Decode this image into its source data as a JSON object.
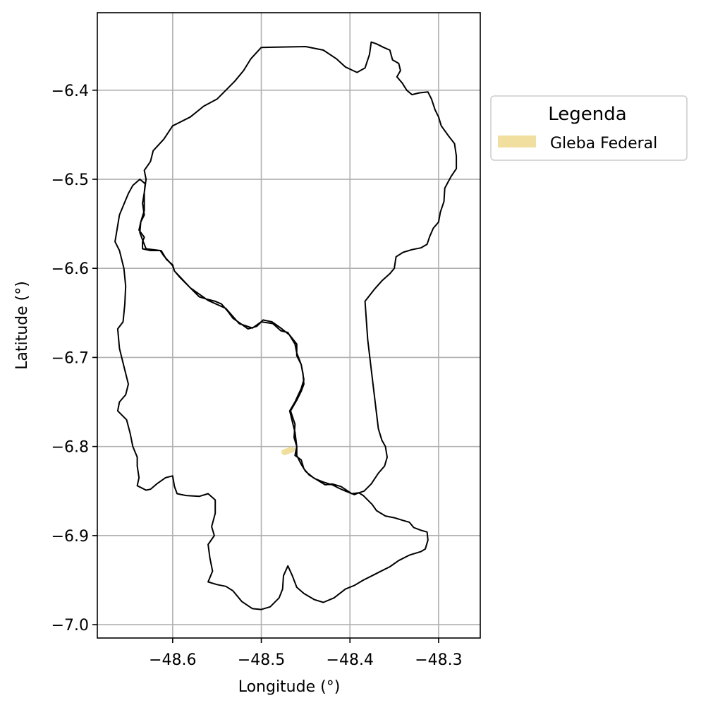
{
  "chart_data": {
    "type": "map",
    "xlabel": "Longitude (°)",
    "ylabel": "Latitude (°)",
    "xlim": [
      -48.685,
      -48.253
    ],
    "ylim": [
      -7.015,
      -6.313
    ],
    "xticks": [
      -48.6,
      -48.5,
      -48.4,
      -48.3
    ],
    "yticks": [
      -6.4,
      -6.5,
      -6.6,
      -6.7,
      -6.8,
      -6.9,
      -7.0
    ],
    "xtick_labels": [
      "−48.6",
      "−48.5",
      "−48.4",
      "−48.3"
    ],
    "ytick_labels": [
      "−6.4",
      "−6.5",
      "−6.6",
      "−6.7",
      "−6.8",
      "−6.9",
      "−7.0"
    ],
    "grid": true,
    "legend": {
      "title": "Legenda",
      "placement": "outside-right-top",
      "entries": [
        {
          "label": "Gleba Federal",
          "color": "#f0df9e"
        }
      ]
    },
    "boundary_color": "#000000",
    "boundary": [
      [
        -48.5,
        -6.352
      ],
      [
        -48.45,
        -6.351
      ],
      [
        -48.43,
        -6.355
      ],
      [
        -48.415,
        -6.365
      ],
      [
        -48.405,
        -6.374
      ],
      [
        -48.392,
        -6.38
      ],
      [
        -48.383,
        -6.375
      ],
      [
        -48.378,
        -6.36
      ],
      [
        -48.376,
        -6.346
      ],
      [
        -48.37,
        -6.348
      ],
      [
        -48.362,
        -6.352
      ],
      [
        -48.355,
        -6.355
      ],
      [
        -48.352,
        -6.366
      ],
      [
        -48.345,
        -6.37
      ],
      [
        -48.343,
        -6.378
      ],
      [
        -48.347,
        -6.385
      ],
      [
        -48.341,
        -6.392
      ],
      [
        -48.336,
        -6.4
      ],
      [
        -48.33,
        -6.405
      ],
      [
        -48.322,
        -6.403
      ],
      [
        -48.312,
        -6.402
      ],
      [
        -48.308,
        -6.41
      ],
      [
        -48.304,
        -6.422
      ],
      [
        -48.3,
        -6.43
      ],
      [
        -48.297,
        -6.44
      ],
      [
        -48.289,
        -6.451
      ],
      [
        -48.282,
        -6.46
      ],
      [
        -48.28,
        -6.474
      ],
      [
        -48.28,
        -6.488
      ],
      [
        -48.286,
        -6.497
      ],
      [
        -48.293,
        -6.51
      ],
      [
        -48.294,
        -6.525
      ],
      [
        -48.298,
        -6.537
      ],
      [
        -48.3,
        -6.548
      ],
      [
        -48.306,
        -6.555
      ],
      [
        -48.31,
        -6.564
      ],
      [
        -48.313,
        -6.573
      ],
      [
        -48.32,
        -6.577
      ],
      [
        -48.33,
        -6.579
      ],
      [
        -48.34,
        -6.582
      ],
      [
        -48.348,
        -6.587
      ],
      [
        -48.35,
        -6.6
      ],
      [
        -48.355,
        -6.606
      ],
      [
        -48.364,
        -6.614
      ],
      [
        -48.372,
        -6.623
      ],
      [
        -48.383,
        -6.637
      ],
      [
        -48.38,
        -6.68
      ],
      [
        -48.374,
        -6.73
      ],
      [
        -48.368,
        -6.78
      ],
      [
        -48.364,
        -6.793
      ],
      [
        -48.36,
        -6.8
      ],
      [
        -48.358,
        -6.812
      ],
      [
        -48.361,
        -6.822
      ],
      [
        -48.368,
        -6.83
      ],
      [
        -48.376,
        -6.842
      ],
      [
        -48.384,
        -6.85
      ],
      [
        -48.39,
        -6.852
      ],
      [
        -48.398,
        -6.853
      ],
      [
        -48.41,
        -6.845
      ],
      [
        -48.42,
        -6.842
      ],
      [
        -48.428,
        -6.843
      ],
      [
        -48.438,
        -6.837
      ],
      [
        -48.446,
        -6.832
      ],
      [
        -48.452,
        -6.825
      ],
      [
        -48.455,
        -6.815
      ],
      [
        -48.462,
        -6.81
      ],
      [
        -48.46,
        -6.8
      ],
      [
        -48.463,
        -6.79
      ],
      [
        -48.462,
        -6.775
      ],
      [
        -48.467,
        -6.76
      ],
      [
        -48.46,
        -6.748
      ],
      [
        -48.455,
        -6.738
      ],
      [
        -48.452,
        -6.73
      ],
      [
        -48.453,
        -6.718
      ],
      [
        -48.455,
        -6.708
      ],
      [
        -48.46,
        -6.698
      ],
      [
        -48.46,
        -6.685
      ],
      [
        -48.468,
        -6.675
      ],
      [
        -48.478,
        -6.667
      ],
      [
        -48.488,
        -6.66
      ],
      [
        -48.498,
        -6.658
      ],
      [
        -48.505,
        -6.665
      ],
      [
        -48.515,
        -6.668
      ],
      [
        -48.522,
        -6.663
      ],
      [
        -48.532,
        -6.656
      ],
      [
        -48.538,
        -6.648
      ],
      [
        -48.545,
        -6.64
      ],
      [
        -48.552,
        -6.637
      ],
      [
        -48.56,
        -6.635
      ],
      [
        -48.57,
        -6.632
      ],
      [
        -48.577,
        -6.625
      ],
      [
        -48.585,
        -6.617
      ],
      [
        -48.592,
        -6.61
      ],
      [
        -48.598,
        -6.603
      ],
      [
        -48.6,
        -6.596
      ],
      [
        -48.607,
        -6.59
      ],
      [
        -48.61,
        -6.585
      ],
      [
        -48.613,
        -6.58
      ],
      [
        -48.625,
        -6.58
      ],
      [
        -48.634,
        -6.578
      ],
      [
        -48.634,
        -6.57
      ],
      [
        -48.632,
        -6.565
      ],
      [
        -48.638,
        -6.557
      ],
      [
        -48.636,
        -6.548
      ],
      [
        -48.632,
        -6.54
      ],
      [
        -48.634,
        -6.527
      ],
      [
        -48.632,
        -6.515
      ],
      [
        -48.631,
        -6.505
      ],
      [
        -48.637,
        -6.5
      ],
      [
        -48.645,
        -6.507
      ],
      [
        -48.65,
        -6.516
      ],
      [
        -48.655,
        -6.528
      ],
      [
        -48.66,
        -6.54
      ],
      [
        -48.665,
        -6.57
      ],
      [
        -48.66,
        -6.58
      ],
      [
        -48.655,
        -6.6
      ],
      [
        -48.653,
        -6.62
      ],
      [
        -48.654,
        -6.64
      ],
      [
        -48.656,
        -6.66
      ],
      [
        -48.662,
        -6.668
      ],
      [
        -48.66,
        -6.69
      ],
      [
        -48.655,
        -6.71
      ],
      [
        -48.65,
        -6.73
      ],
      [
        -48.653,
        -6.742
      ],
      [
        -48.66,
        -6.75
      ],
      [
        -48.662,
        -6.76
      ],
      [
        -48.652,
        -6.77
      ],
      [
        -48.648,
        -6.785
      ],
      [
        -48.645,
        -6.8
      ],
      [
        -48.64,
        -6.812
      ],
      [
        -48.64,
        -6.822
      ],
      [
        -48.638,
        -6.835
      ],
      [
        -48.64,
        -6.844
      ],
      [
        -48.63,
        -6.849
      ],
      [
        -48.625,
        -6.848
      ],
      [
        -48.618,
        -6.842
      ],
      [
        -48.608,
        -6.835
      ],
      [
        -48.6,
        -6.833
      ],
      [
        -48.598,
        -6.845
      ],
      [
        -48.595,
        -6.853
      ],
      [
        -48.585,
        -6.855
      ],
      [
        -48.57,
        -6.856
      ],
      [
        -48.56,
        -6.853
      ],
      [
        -48.552,
        -6.86
      ],
      [
        -48.552,
        -6.875
      ],
      [
        -48.556,
        -6.89
      ],
      [
        -48.553,
        -6.9
      ],
      [
        -48.56,
        -6.91
      ],
      [
        -48.558,
        -6.925
      ],
      [
        -48.555,
        -6.94
      ],
      [
        -48.56,
        -6.952
      ],
      [
        -48.55,
        -6.955
      ],
      [
        -48.54,
        -6.957
      ],
      [
        -48.532,
        -6.962
      ],
      [
        -48.522,
        -6.974
      ],
      [
        -48.51,
        -6.982
      ],
      [
        -48.5,
        -6.983
      ],
      [
        -48.49,
        -6.98
      ],
      [
        -48.48,
        -6.97
      ],
      [
        -48.476,
        -6.96
      ],
      [
        -48.475,
        -6.945
      ],
      [
        -48.47,
        -6.934
      ],
      [
        -48.465,
        -6.945
      ],
      [
        -48.46,
        -6.958
      ],
      [
        -48.452,
        -6.965
      ],
      [
        -48.44,
        -6.972
      ],
      [
        -48.43,
        -6.975
      ],
      [
        -48.418,
        -6.97
      ],
      [
        -48.405,
        -6.96
      ],
      [
        -48.395,
        -6.956
      ],
      [
        -48.385,
        -6.95
      ],
      [
        -48.375,
        -6.945
      ],
      [
        -48.365,
        -6.94
      ],
      [
        -48.355,
        -6.935
      ],
      [
        -48.345,
        -6.928
      ],
      [
        -48.333,
        -6.922
      ],
      [
        -48.32,
        -6.918
      ],
      [
        -48.315,
        -6.915
      ],
      [
        -48.312,
        -6.905
      ],
      [
        -48.313,
        -6.896
      ],
      [
        -48.32,
        -6.894
      ],
      [
        -48.328,
        -6.891
      ],
      [
        -48.333,
        -6.885
      ],
      [
        -48.34,
        -6.883
      ],
      [
        -48.35,
        -6.88
      ],
      [
        -48.36,
        -6.878
      ],
      [
        -48.37,
        -6.872
      ],
      [
        -48.375,
        -6.865
      ],
      [
        -48.38,
        -6.86
      ],
      [
        -48.385,
        -6.855
      ],
      [
        -48.39,
        -6.852
      ],
      [
        -48.395,
        -6.854
      ],
      [
        -48.405,
        -6.85
      ],
      [
        -48.412,
        -6.847
      ],
      [
        -48.42,
        -6.843
      ],
      [
        -48.43,
        -6.84
      ],
      [
        -48.44,
        -6.836
      ],
      [
        -48.45,
        -6.828
      ],
      [
        -48.455,
        -6.82
      ],
      [
        -48.46,
        -6.81
      ],
      [
        -48.46,
        -6.8
      ],
      [
        -48.462,
        -6.784
      ],
      [
        -48.468,
        -6.76
      ],
      [
        -48.462,
        -6.75
      ],
      [
        -48.455,
        -6.735
      ],
      [
        -48.452,
        -6.725
      ],
      [
        -48.455,
        -6.708
      ],
      [
        -48.46,
        -6.695
      ],
      [
        -48.462,
        -6.685
      ],
      [
        -48.47,
        -6.672
      ],
      [
        -48.478,
        -6.67
      ],
      [
        -48.487,
        -6.662
      ],
      [
        -48.5,
        -6.66
      ],
      [
        -48.51,
        -6.667
      ],
      [
        -48.525,
        -6.662
      ],
      [
        -48.54,
        -6.645
      ],
      [
        -48.56,
        -6.636
      ],
      [
        -48.58,
        -6.622
      ],
      [
        -48.598,
        -6.603
      ],
      [
        -48.6,
        -6.597
      ],
      [
        -48.61,
        -6.586
      ],
      [
        -48.614,
        -6.58
      ],
      [
        -48.63,
        -6.578
      ],
      [
        -48.634,
        -6.568
      ],
      [
        -48.637,
        -6.56
      ],
      [
        -48.636,
        -6.548
      ],
      [
        -48.632,
        -6.535
      ],
      [
        -48.632,
        -6.515
      ],
      [
        -48.63,
        -6.5
      ],
      [
        -48.632,
        -6.49
      ],
      [
        -48.625,
        -6.48
      ],
      [
        -48.622,
        -6.468
      ],
      [
        -48.61,
        -6.455
      ],
      [
        -48.6,
        -6.44
      ],
      [
        -48.58,
        -6.43
      ],
      [
        -48.565,
        -6.418
      ],
      [
        -48.55,
        -6.41
      ],
      [
        -48.54,
        -6.4
      ],
      [
        -48.53,
        -6.39
      ],
      [
        -48.52,
        -6.378
      ],
      [
        -48.512,
        -6.365
      ],
      [
        -48.5,
        -6.352
      ]
    ],
    "gleba_federal": [
      [
        -48.477,
        -6.804
      ],
      [
        -48.466,
        -6.8
      ],
      [
        -48.462,
        -6.802
      ],
      [
        -48.463,
        -6.806
      ],
      [
        -48.474,
        -6.81
      ],
      [
        -48.477,
        -6.808
      ]
    ]
  }
}
